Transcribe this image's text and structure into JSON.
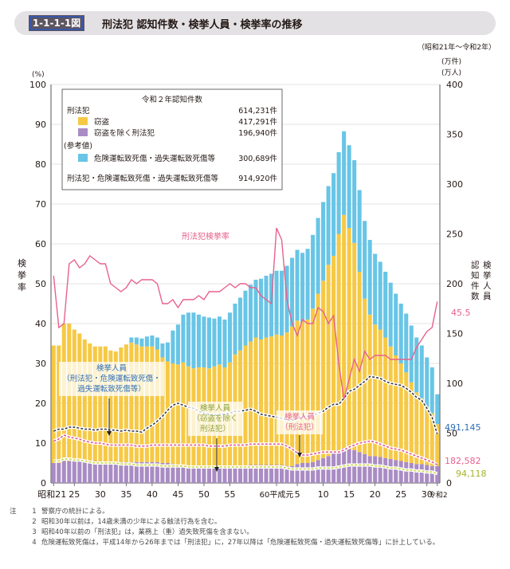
{
  "header": {
    "badge": "1-1-1-1図",
    "title": "刑法犯 認知件数・検挙人員・検挙率の推移",
    "period": "（昭和21年～令和2年）"
  },
  "axes": {
    "left_unit": "(%)",
    "right_unit": [
      "(万件)",
      "(万人)"
    ],
    "left_label": "検挙率",
    "right_label_1": "検挙人員",
    "right_label_2": "認知件数"
  },
  "x_ticks": [
    "昭和21",
    "25",
    "30",
    "35",
    "40",
    "45",
    "50",
    "55",
    "60平成元",
    "5",
    "10",
    "15",
    "20",
    "25",
    "30",
    "令和2"
  ],
  "legend": {
    "title": "令和２年認知件数",
    "rows": [
      {
        "label": "刑法犯",
        "value": "614,231件"
      },
      {
        "label": "窃盗",
        "value": "417,291件"
      },
      {
        "label": "窃盗を除く刑法犯",
        "value": "196,940件"
      },
      {
        "label": "(参考値)",
        "value": ""
      },
      {
        "label": "危険運転致死傷・過失運転致死傷等",
        "value": "300,689件"
      },
      {
        "label": "刑法犯・危険運転致死傷・過失運転致死傷等",
        "value": "914,920件"
      }
    ]
  },
  "annotations": {
    "rate": "刑法犯検挙率",
    "arrest_all": [
      "検挙人員",
      "（刑法犯・危険運転致死傷・",
      "過失運転致死傷等）"
    ],
    "arrest_nontheft": [
      "検挙人員",
      "（窃盗を除く",
      "刑法犯）"
    ],
    "arrest_penal": [
      "検挙人員",
      "（刑法犯）"
    ]
  },
  "end_labels": {
    "rate": "45.5",
    "all": "491,145",
    "penal": "182,582",
    "nontheft": "94,118"
  },
  "notes": [
    {
      "k": "注",
      "n": "1",
      "t": "警察庁の統計による。"
    },
    {
      "k": "",
      "n": "2",
      "t": "昭和30年以前は，14歳未満の少年による触法行為を含む。"
    },
    {
      "k": "",
      "n": "3",
      "t": "昭和40年以前の「刑法犯」は，業務上（重）過失致死傷を含まない。"
    },
    {
      "k": "",
      "n": "4",
      "t": "危険運転致死傷は，平成14年から26年までは「刑法犯」に，27年以降は「危険運転致死傷・過失運転致死傷等」に計上している。"
    }
  ],
  "colors": {
    "theft": "#f6c945",
    "nontheft": "#a98cc4",
    "traffic": "#68c5e6",
    "rate": "#e8618c",
    "penal_line": "#e0508a",
    "nontheft_line": "#c8d63a"
  },
  "chart_data": {
    "type": "bar",
    "years": [
      1946,
      1947,
      1948,
      1949,
      1950,
      1951,
      1952,
      1953,
      1954,
      1955,
      1956,
      1957,
      1958,
      1959,
      1960,
      1961,
      1962,
      1963,
      1964,
      1965,
      1966,
      1967,
      1968,
      1969,
      1970,
      1971,
      1972,
      1973,
      1974,
      1975,
      1976,
      1977,
      1978,
      1979,
      1980,
      1981,
      1982,
      1983,
      1984,
      1985,
      1986,
      1987,
      1988,
      1989,
      1990,
      1991,
      1992,
      1993,
      1994,
      1995,
      1996,
      1997,
      1998,
      1999,
      2000,
      2001,
      2002,
      2003,
      2004,
      2005,
      2006,
      2007,
      2008,
      2009,
      2010,
      2011,
      2012,
      2013,
      2014,
      2015,
      2016,
      2017,
      2018,
      2019,
      2020
    ],
    "left_axis": {
      "label": "検挙率",
      "unit": "%",
      "ylim": [
        0,
        100
      ],
      "ticks": [
        0,
        10,
        20,
        30,
        40,
        50,
        60,
        70,
        80,
        90,
        100
      ]
    },
    "right_axis": {
      "unit": "万件 / 万人",
      "ylim": [
        0,
        400
      ],
      "ticks": [
        0,
        50,
        100,
        150,
        200,
        250,
        300,
        350,
        400
      ]
    },
    "series": [
      {
        "name": "窃盗",
        "axis": "right",
        "values": [
          118,
          118,
          138,
          138,
          132,
          128,
          122,
          118,
          115,
          116,
          116,
          112,
          111,
          115,
          118,
          120,
          118,
          116,
          116,
          116,
          113,
          106,
          102,
          101,
          101,
          103,
          100,
          98,
          99,
          100,
          99,
          101,
          103,
          100,
          105,
          112,
          116,
          121,
          124,
          128,
          126,
          128,
          129,
          131,
          130,
          134,
          140,
          144,
          142,
          144,
          154,
          167,
          178,
          192,
          198,
          218,
          234,
          222,
          208,
          181,
          156,
          142,
          132,
          128,
          121,
          113,
          105,
          98,
          90,
          81,
          72,
          66,
          58,
          53,
          42
        ]
      },
      {
        "name": "窃盗を除く刑法犯",
        "axis": "right",
        "values": [
          20,
          20,
          22,
          22,
          22,
          22,
          22,
          22,
          22,
          21,
          21,
          21,
          21,
          21,
          21,
          21,
          21,
          21,
          21,
          21,
          21,
          20,
          20,
          19,
          18,
          18,
          17,
          17,
          17,
          16,
          16,
          16,
          16,
          16,
          16,
          17,
          17,
          17,
          18,
          18,
          18,
          18,
          18,
          18,
          18,
          17,
          17,
          19,
          20,
          20,
          21,
          23,
          25,
          27,
          30,
          32,
          35,
          34,
          33,
          31,
          29,
          27,
          27,
          26,
          25,
          24,
          23,
          22,
          21,
          20,
          19,
          19,
          18,
          17,
          17
        ]
      },
      {
        "name": "危険運転致死傷・過失運転致死傷等",
        "axis": "right",
        "values": [
          0,
          0,
          0,
          0,
          0,
          0,
          0,
          0,
          0,
          0,
          0,
          0,
          0,
          0,
          0,
          5,
          7,
          8,
          10,
          11,
          12,
          14,
          19,
          33,
          40,
          48,
          54,
          56,
          53,
          51,
          51,
          48,
          48,
          48,
          50,
          51,
          53,
          55,
          57,
          58,
          61,
          62,
          63,
          64,
          65,
          67,
          69,
          71,
          69,
          71,
          74,
          76,
          79,
          79,
          83,
          82,
          84,
          83,
          83,
          82,
          78,
          75,
          71,
          68,
          66,
          64,
          62,
          60,
          59,
          57,
          55,
          53,
          50,
          46,
          30
        ]
      },
      {
        "name": "刑法犯検挙率",
        "axis": "left",
        "type": "line",
        "values": [
          52,
          39,
          40,
          55,
          56,
          54,
          55,
          57,
          56,
          55,
          55,
          50,
          49,
          48,
          49,
          51,
          50,
          51,
          51,
          51,
          50,
          45,
          45,
          46,
          44,
          46,
          46,
          46,
          47,
          46,
          48,
          48,
          48,
          49,
          50,
          49,
          50,
          50,
          49,
          49,
          47,
          46,
          45,
          64,
          61,
          46,
          40,
          37,
          41,
          40,
          40,
          44,
          43,
          40,
          42,
          30,
          21,
          26,
          31,
          28,
          33,
          31,
          32,
          32,
          32,
          31,
          31,
          31,
          31,
          31,
          34,
          36,
          38,
          39,
          45.5
        ]
      },
      {
        "name": "検挙人員（刑法犯・危険運転致死傷・過失運転致死傷等）",
        "axis": "right",
        "type": "line",
        "values": [
          52,
          54,
          54,
          56,
          56,
          55,
          54,
          54,
          53,
          54,
          54,
          53,
          53,
          52,
          53,
          52,
          52,
          51,
          55,
          58,
          62,
          67,
          73,
          78,
          80,
          78,
          76,
          75,
          72,
          70,
          69,
          68,
          69,
          69,
          70,
          72,
          72,
          73,
          74,
          72,
          69,
          68,
          67,
          66,
          65,
          63,
          63,
          65,
          66,
          67,
          68,
          70,
          72,
          76,
          79,
          79,
          85,
          92,
          94,
          98,
          102,
          107,
          106,
          105,
          102,
          100,
          99,
          98,
          95,
          91,
          86,
          83,
          75,
          66,
          49.1
        ]
      },
      {
        "name": "検挙人員（刑法犯）",
        "axis": "right",
        "type": "line",
        "values": [
          42,
          44,
          48,
          46,
          45,
          44,
          42,
          41,
          40,
          40,
          39,
          38,
          38,
          38,
          38,
          38,
          37,
          37,
          37,
          38,
          38,
          38,
          38,
          38,
          38,
          38,
          38,
          38,
          38,
          38,
          37,
          37,
          37,
          37,
          38,
          38,
          38,
          38,
          39,
          39,
          39,
          39,
          39,
          39,
          39,
          37,
          34,
          30,
          28,
          28,
          29,
          30,
          31,
          31,
          31,
          31,
          33,
          36,
          38,
          40,
          41,
          42,
          41,
          39,
          37,
          35,
          34,
          33,
          31,
          29,
          27,
          25,
          23,
          21,
          18.3
        ]
      },
      {
        "name": "検挙人員（窃盗を除く刑法犯）",
        "axis": "right",
        "type": "line",
        "values": [
          22,
          22,
          24,
          24,
          23,
          23,
          22,
          21,
          20,
          20,
          20,
          20,
          20,
          19,
          19,
          19,
          18,
          18,
          18,
          18,
          18,
          17,
          17,
          17,
          17,
          17,
          16,
          16,
          16,
          16,
          16,
          16,
          16,
          16,
          16,
          16,
          16,
          16,
          16,
          16,
          16,
          16,
          16,
          16,
          16,
          15,
          14,
          14,
          14,
          14,
          14,
          15,
          15,
          15,
          15,
          16,
          17,
          18,
          18,
          18,
          18,
          18,
          17,
          17,
          16,
          15,
          15,
          14,
          13,
          13,
          12,
          12,
          11,
          11,
          9.4
        ]
      }
    ]
  }
}
